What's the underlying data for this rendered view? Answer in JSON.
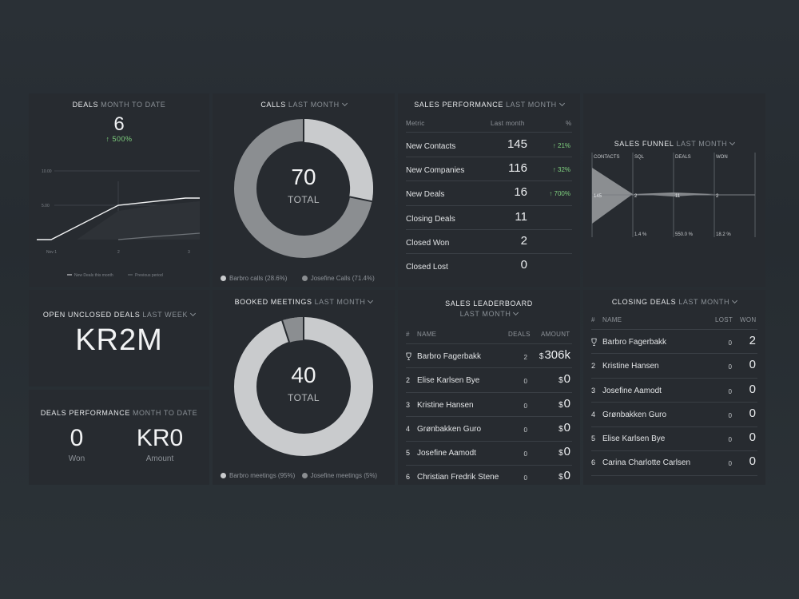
{
  "colors": {
    "panel": "#272b30",
    "green": "#7fd07f",
    "donut_light": "#c9cbcd",
    "donut_dark": "#8a8d90"
  },
  "deals": {
    "title": "DEALS",
    "period": "MONTH TO DATE",
    "value": "6",
    "change": "↑ 500%",
    "y_ticks": [
      "10.00",
      "5.00"
    ],
    "x_ticks": [
      "Nov 1",
      "2",
      "3"
    ],
    "legend_current": "New Deals this month",
    "legend_previous": "Previous period"
  },
  "calls": {
    "title": "CALLS",
    "period": "LAST MONTH",
    "total_value": "70",
    "total_label": "TOTAL",
    "legend": [
      "Barbro calls (28.6%)",
      "Josefine Calls (71.4%)"
    ]
  },
  "sales_performance": {
    "title": "SALES PERFORMANCE",
    "period": "LAST MONTH",
    "headers": [
      "Metric",
      "Last month",
      "%"
    ],
    "rows": [
      {
        "metric": "New Contacts",
        "value": "145",
        "change": "↑ 21%"
      },
      {
        "metric": "New Companies",
        "value": "116",
        "change": "↑ 32%"
      },
      {
        "metric": "New Deals",
        "value": "16",
        "change": "↑ 700%"
      },
      {
        "metric": "Closing Deals",
        "value": "11",
        "change": ""
      },
      {
        "metric": "Closed Won",
        "value": "2",
        "change": ""
      },
      {
        "metric": "Closed Lost",
        "value": "0",
        "change": ""
      }
    ]
  },
  "sales_funnel": {
    "title": "SALES FUNNEL",
    "period": "LAST MONTH",
    "stages": [
      "CONTACTS",
      "SQL",
      "DEALS",
      "WON"
    ],
    "values": [
      "145",
      "2",
      "11",
      "2"
    ],
    "rates": [
      "",
      "1.4 %",
      "550.0 %",
      "18.2 %"
    ]
  },
  "open_unclosed": {
    "title": "OPEN UNCLOSED DEALS",
    "period": "LAST WEEK",
    "value": "KR2M"
  },
  "deals_performance": {
    "title": "DEALS PERFORMANCE",
    "period": "MONTH TO DATE",
    "won_value": "0",
    "won_label": "Won",
    "amount_value": "KR0",
    "amount_label": "Amount"
  },
  "booked_meetings": {
    "title": "BOOKED MEETINGS",
    "period": "LAST MONTH",
    "total_value": "40",
    "total_label": "TOTAL",
    "legend": [
      "Barbro meetings (95%)",
      "Josefine meetings (5%)"
    ]
  },
  "leaderboard": {
    "title": "SALES LEADERBOARD",
    "period": "LAST MONTH",
    "headers": [
      "#",
      "NAME",
      "DEALS",
      "AMOUNT"
    ],
    "rows": [
      {
        "rank": "",
        "name": "Barbro Fagerbakk",
        "deals": "2",
        "currency": "$",
        "amount": "306k"
      },
      {
        "rank": "2",
        "name": "Elise Karlsen Bye",
        "deals": "0",
        "currency": "$",
        "amount": "0"
      },
      {
        "rank": "3",
        "name": "Kristine Hansen",
        "deals": "0",
        "currency": "$",
        "amount": "0"
      },
      {
        "rank": "4",
        "name": "Grønbakken Guro",
        "deals": "0",
        "currency": "$",
        "amount": "0"
      },
      {
        "rank": "5",
        "name": "Josefine Aamodt",
        "deals": "0",
        "currency": "$",
        "amount": "0"
      },
      {
        "rank": "6",
        "name": "Christian Fredrik Stene",
        "deals": "0",
        "currency": "$",
        "amount": "0"
      }
    ]
  },
  "closing_deals": {
    "title": "CLOSING DEALS",
    "period": "LAST MONTH",
    "headers": [
      "#",
      "NAME",
      "LOST",
      "WON"
    ],
    "rows": [
      {
        "rank": "",
        "name": "Barbro Fagerbakk",
        "lost": "0",
        "won": "2"
      },
      {
        "rank": "2",
        "name": "Kristine Hansen",
        "lost": "0",
        "won": "0"
      },
      {
        "rank": "3",
        "name": "Josefine Aamodt",
        "lost": "0",
        "won": "0"
      },
      {
        "rank": "4",
        "name": "Grønbakken Guro",
        "lost": "0",
        "won": "0"
      },
      {
        "rank": "5",
        "name": "Elise Karlsen Bye",
        "lost": "0",
        "won": "0"
      },
      {
        "rank": "6",
        "name": "Carina Charlotte Carlsen",
        "lost": "0",
        "won": "0"
      }
    ]
  }
}
